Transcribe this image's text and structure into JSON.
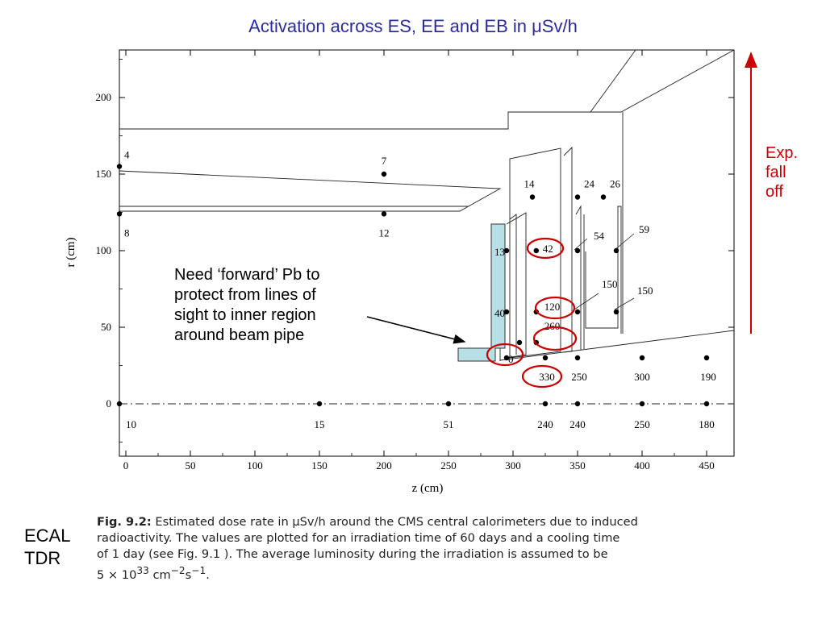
{
  "title": "Activation across ES, EE and EB in μSv/h",
  "axes": {
    "xlabel": "z (cm)",
    "ylabel": "r (cm)",
    "xticks": [
      "0",
      "50",
      "100",
      "150",
      "200",
      "250",
      "300",
      "350",
      "400",
      "450"
    ],
    "yticks": [
      "0",
      "50",
      "100",
      "150",
      "200"
    ],
    "xlim": [
      -5,
      475
    ],
    "ylim": [
      -35,
      235
    ]
  },
  "points": [
    {
      "z": -5,
      "r": 155,
      "label": "4"
    },
    {
      "z": -5,
      "r": 124,
      "label": "8"
    },
    {
      "z": 200,
      "r": 150,
      "label": "7"
    },
    {
      "z": 200,
      "r": 124,
      "label": "12"
    },
    {
      "z": 315,
      "r": 135,
      "label": "14"
    },
    {
      "z": 350,
      "r": 135,
      "label": "24"
    },
    {
      "z": 370,
      "r": 135,
      "label": "26"
    },
    {
      "z": 295,
      "r": 100,
      "label": "13"
    },
    {
      "z": 318,
      "r": 100,
      "label": "42"
    },
    {
      "z": 350,
      "r": 100,
      "label": "54"
    },
    {
      "z": 380,
      "r": 100,
      "label": "59"
    },
    {
      "z": 295,
      "r": 60,
      "label": "40"
    },
    {
      "z": 318,
      "r": 60,
      "label": "120"
    },
    {
      "z": 350,
      "r": 60,
      "label": "150"
    },
    {
      "z": 380,
      "r": 60,
      "label": "150"
    },
    {
      "z": 305,
      "r": 40,
      "label": ""
    },
    {
      "z": 318,
      "r": 40,
      "label": "260"
    },
    {
      "z": 295,
      "r": 30,
      "label": "0"
    },
    {
      "z": 325,
      "r": 30,
      "label": "330"
    },
    {
      "z": 350,
      "r": 30,
      "label": "250"
    },
    {
      "z": 400,
      "r": 30,
      "label": "300"
    },
    {
      "z": 450,
      "r": 30,
      "label": "190"
    },
    {
      "z": -5,
      "r": 0,
      "label": "10"
    },
    {
      "z": 150,
      "r": 0,
      "label": "15"
    },
    {
      "z": 250,
      "r": 0,
      "label": "51"
    },
    {
      "z": 325,
      "r": 0,
      "label": "240"
    },
    {
      "z": 350,
      "r": 0,
      "label": "240"
    },
    {
      "z": 400,
      "r": 0,
      "label": "250"
    },
    {
      "z": 450,
      "r": 0,
      "label": "180"
    }
  ],
  "annotation": {
    "lines": [
      "Need ‘forward’ Pb to",
      "protect from lines of",
      "sight to inner region",
      "around beam pipe"
    ]
  },
  "exp_fall_off": [
    "Exp.",
    "fall",
    "off"
  ],
  "side_label": [
    "ECAL",
    "TDR"
  ],
  "caption": {
    "lead": "Fig. 9.2:",
    "lines": [
      "Estimated dose rate in μSv/h around the CMS central calorimeters due to induced",
      "radioactivity. The values are plotted for an irradiation time of 60 days and a cooling time",
      "of 1 day (see Fig. 9.1 ). The average luminosity during the irradiation is assumed to be"
    ],
    "formula_base": "5 × 10",
    "formula_exp1": "33",
    "formula_mid": " cm",
    "formula_exp2": "−2",
    "formula_mid2": "s",
    "formula_exp3": "−1",
    "formula_end": "."
  },
  "colors": {
    "title": "#2a2aa5",
    "highlight": "#cc0000",
    "pb_block": "#b9dfe6"
  }
}
